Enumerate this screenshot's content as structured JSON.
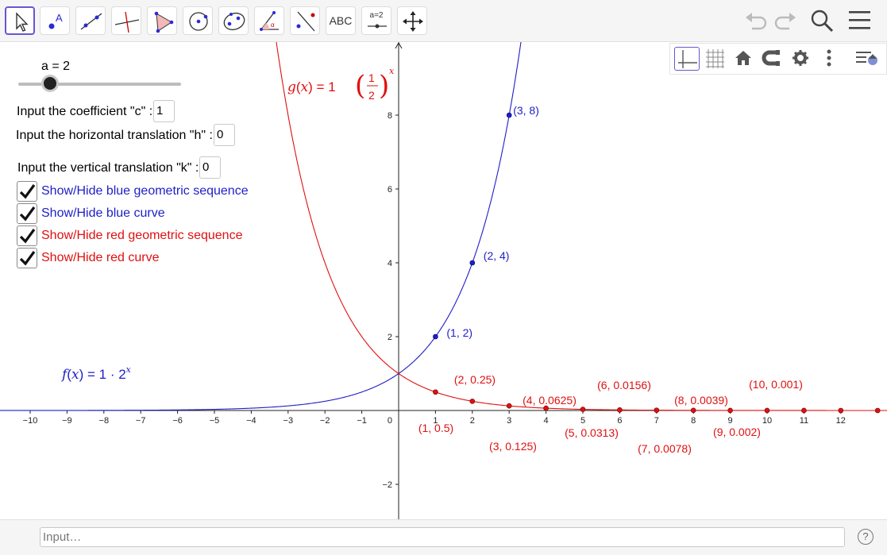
{
  "colors": {
    "blue": "#1e1ec8",
    "red": "#e01010",
    "accent": "#6557d2"
  },
  "toolbar": {
    "text_tool_label": "ABC",
    "slider_tool_label": "a=2"
  },
  "slider": {
    "label": "a = 2",
    "value": 2,
    "min": -5,
    "max": 5
  },
  "inputs": {
    "c": {
      "label": "Input the coefficient \"c\" :",
      "value": "1"
    },
    "h": {
      "label": "Input the horizontal translation \"h\" :",
      "value": "0"
    },
    "k": {
      "label": "Input the vertical translation \"k\" :",
      "value": "0"
    }
  },
  "checkboxes": [
    {
      "label": "Show/Hide blue geometric sequence",
      "checked": true,
      "color": "blue"
    },
    {
      "label": "Show/Hide blue curve",
      "checked": true,
      "color": "blue"
    },
    {
      "label": "Show/Hide red geometric sequence",
      "checked": true,
      "color": "red"
    },
    {
      "label": "Show/Hide red curve",
      "checked": true,
      "color": "red"
    }
  ],
  "graph": {
    "x_ticks": [
      "-10",
      "-9",
      "-8",
      "-7",
      "-6",
      "-5",
      "-4",
      "-3",
      "-2",
      "-1",
      "1",
      "2",
      "3",
      "4",
      "5",
      "6",
      "7",
      "8",
      "9",
      "10",
      "11",
      "12"
    ],
    "y_ticks": [
      "-2",
      "2",
      "4",
      "6",
      "8"
    ],
    "origin_label": "0",
    "f_label": {
      "name": "f",
      "var": "x",
      "eq": "=",
      "expr_coef": "1",
      "expr_base": "2",
      "expr_exp": "x"
    },
    "g_label": {
      "name": "g",
      "var": "x",
      "eq": "=",
      "expr_coef": "1",
      "num": "1",
      "den": "2",
      "expr_exp": "x"
    },
    "blue_points": [
      {
        "x": 1,
        "y": 2,
        "label": "(1, 2)"
      },
      {
        "x": 2,
        "y": 4,
        "label": "(2, 4)"
      },
      {
        "x": 3,
        "y": 8,
        "label": "(3, 8)"
      }
    ],
    "red_points": [
      {
        "x": 1,
        "y": 0.5,
        "label": "(1, 0.5)"
      },
      {
        "x": 2,
        "y": 0.25,
        "label": "(2, 0.25)"
      },
      {
        "x": 3,
        "y": 0.125,
        "label": "(3, 0.125)"
      },
      {
        "x": 4,
        "y": 0.0625,
        "label": "(4, 0.0625)"
      },
      {
        "x": 5,
        "y": 0.0313,
        "label": "(5, 0.0313)"
      },
      {
        "x": 6,
        "y": 0.0156,
        "label": "(6, 0.0156)"
      },
      {
        "x": 7,
        "y": 0.0078,
        "label": "(7, 0.0078)"
      },
      {
        "x": 8,
        "y": 0.0039,
        "label": "(8, 0.0039)"
      },
      {
        "x": 9,
        "y": 0.002,
        "label": "(9, 0.002)"
      },
      {
        "x": 10,
        "y": 0.001,
        "label": "(10, 0.001)"
      },
      {
        "x": 11,
        "y": 0.0005,
        "label": ""
      },
      {
        "x": 12,
        "y": 0.0002,
        "label": ""
      },
      {
        "x": 13,
        "y": 0.0001,
        "label": ""
      }
    ]
  },
  "input_bar": {
    "placeholder": "Input…",
    "help": "?"
  }
}
